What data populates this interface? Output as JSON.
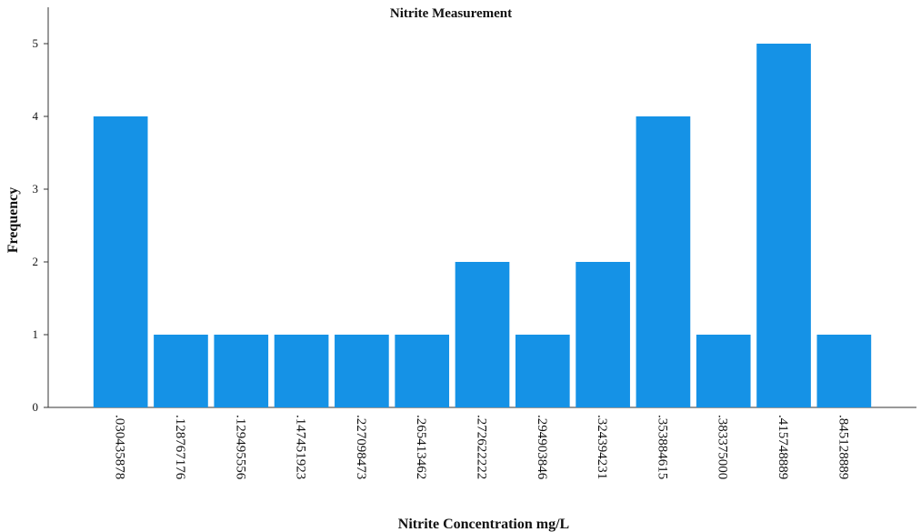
{
  "chart_data": {
    "type": "bar",
    "title": "Nitrite Measurement",
    "x_label": "Nitrite Concentration mg/L",
    "y_label": "Frequency",
    "categories": [
      ".030435878",
      ".128767176",
      ".129495556",
      ".147451923",
      ".227098473",
      ".265413462",
      ".272622222",
      ".294903846",
      ".324394231",
      ".353884615",
      ".383375000",
      ".415748889",
      ".845128889"
    ],
    "values": [
      4,
      1,
      1,
      1,
      1,
      1,
      2,
      1,
      2,
      4,
      1,
      5,
      1
    ],
    "color": "#1592e6",
    "ylim": [
      0,
      5.5
    ],
    "yticks": [
      0,
      1,
      2,
      3,
      4,
      5
    ],
    "grid": false
  }
}
